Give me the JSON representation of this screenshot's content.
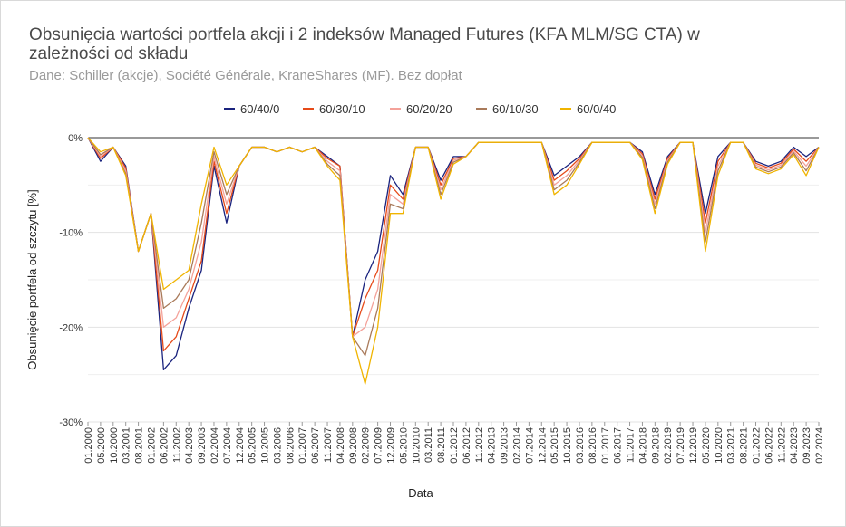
{
  "chart_data": {
    "type": "line",
    "title": "Obsunięcia wartości portfela akcji i 2 indeksów Managed Futures (KFA MLM/SG CTA) w zależności od składu",
    "subtitle": "Dane: Schiller (akcje), Société Générale, KraneShares (MF). Bez dopłat",
    "xlabel": "Data",
    "ylabel": "Obsunięcie portfela od szczytu [%]",
    "ylim": [
      -30,
      0
    ],
    "yticks": [
      0,
      -10,
      -20,
      -30
    ],
    "ytick_labels": [
      "0%",
      "-10%",
      "-20%",
      "-30%"
    ],
    "grid": true,
    "legend_position": "top-center",
    "categories": [
      "01.2000",
      "05.2000",
      "10.2000",
      "03.2001",
      "08.2001",
      "01.2002",
      "06.2002",
      "11.2002",
      "04.2003",
      "09.2003",
      "02.2004",
      "07.2004",
      "12.2004",
      "05.2005",
      "10.2005",
      "03.2006",
      "08.2006",
      "01.2007",
      "06.2007",
      "11.2007",
      "04.2008",
      "09.2008",
      "02.2009",
      "07.2009",
      "12.2009",
      "05.2010",
      "10.2010",
      "03.2011",
      "08.2011",
      "01.2012",
      "06.2012",
      "11.2012",
      "04.2013",
      "09.2013",
      "02.2014",
      "07.2014",
      "12.2014",
      "05.2015",
      "10.2015",
      "03.2016",
      "08.2016",
      "01.2017",
      "06.2017",
      "11.2017",
      "04.2018",
      "09.2018",
      "02.2019",
      "07.2019",
      "12.2019",
      "05.2020",
      "10.2020",
      "03.2021",
      "08.2021",
      "01.2022",
      "06.2022",
      "11.2022",
      "04.2023",
      "09.2023",
      "02.2024"
    ],
    "series": [
      {
        "name": "60/40/0",
        "color": "#1a237e",
        "values": [
          0,
          -2.5,
          -1,
          -3,
          -12,
          -8,
          -24.5,
          -23,
          -18,
          -14,
          -3,
          -9,
          -3,
          -1,
          -1,
          -1.5,
          -1,
          -1.5,
          -1,
          -2,
          -3,
          -21,
          -15,
          -12,
          -4,
          -6,
          -1,
          -1,
          -4.5,
          -2,
          -2,
          -0.5,
          -0.5,
          -0.5,
          -0.5,
          -0.5,
          -0.5,
          -4,
          -3,
          -2,
          -0.5,
          -0.5,
          -0.5,
          -0.5,
          -1.5,
          -6,
          -2,
          -0.5,
          -0.5,
          -8,
          -2,
          -0.5,
          -0.5,
          -2.5,
          -3,
          -2.5,
          -1,
          -2,
          -1
        ]
      },
      {
        "name": "60/30/10",
        "color": "#e64a19",
        "values": [
          0,
          -2.2,
          -1,
          -3.2,
          -12,
          -8,
          -22.5,
          -21,
          -17,
          -13,
          -2.5,
          -8,
          -3,
          -1,
          -1,
          -1.5,
          -1,
          -1.5,
          -1,
          -2.2,
          -3,
          -21,
          -17,
          -14,
          -5,
          -6.5,
          -1,
          -1,
          -5,
          -2.2,
          -2,
          -0.5,
          -0.5,
          -0.5,
          -0.5,
          -0.5,
          -0.5,
          -4.5,
          -3.5,
          -2.2,
          -0.5,
          -0.5,
          -0.5,
          -0.5,
          -1.7,
          -6.5,
          -2.2,
          -0.5,
          -0.5,
          -9,
          -2.5,
          -0.5,
          -0.5,
          -2.7,
          -3.2,
          -2.7,
          -1.2,
          -2.5,
          -1
        ]
      },
      {
        "name": "60/20/20",
        "color": "#f4a29a",
        "values": [
          0,
          -2,
          -1,
          -3.5,
          -12,
          -8,
          -20,
          -19,
          -16,
          -11,
          -2,
          -7,
          -3,
          -1,
          -1,
          -1.5,
          -1,
          -1.5,
          -1,
          -2.5,
          -3.5,
          -21,
          -20,
          -16,
          -6,
          -7,
          -1,
          -1,
          -5.5,
          -2.4,
          -2,
          -0.5,
          -0.5,
          -0.5,
          -0.5,
          -0.5,
          -0.5,
          -5,
          -4,
          -2.4,
          -0.5,
          -0.5,
          -0.5,
          -0.5,
          -1.9,
          -7,
          -2.4,
          -0.5,
          -0.5,
          -10,
          -3,
          -0.5,
          -0.5,
          -2.9,
          -3.4,
          -2.9,
          -1.4,
          -3,
          -1
        ]
      },
      {
        "name": "60/10/30",
        "color": "#a97a5a",
        "values": [
          0,
          -1.8,
          -1,
          -3.8,
          -12,
          -8,
          -18,
          -17,
          -15,
          -9,
          -1.5,
          -6,
          -3,
          -1,
          -1,
          -1.5,
          -1,
          -1.5,
          -1,
          -2.8,
          -4,
          -21,
          -23,
          -18,
          -7,
          -7.5,
          -1,
          -1,
          -6,
          -2.6,
          -2,
          -0.5,
          -0.5,
          -0.5,
          -0.5,
          -0.5,
          -0.5,
          -5.5,
          -4.5,
          -2.6,
          -0.5,
          -0.5,
          -0.5,
          -0.5,
          -2.1,
          -7.5,
          -2.6,
          -0.5,
          -0.5,
          -11,
          -3.5,
          -0.5,
          -0.5,
          -3.1,
          -3.6,
          -3.1,
          -1.6,
          -3.5,
          -1
        ]
      },
      {
        "name": "60/0/40",
        "color": "#f0b400",
        "values": [
          0,
          -1.5,
          -1,
          -4,
          -12,
          -8,
          -16,
          -15,
          -14,
          -7,
          -1,
          -5,
          -3,
          -1,
          -1,
          -1.5,
          -1,
          -1.5,
          -1,
          -3,
          -4.5,
          -21,
          -26,
          -20,
          -8,
          -8,
          -1,
          -1,
          -6.5,
          -2.8,
          -2,
          -0.5,
          -0.5,
          -0.5,
          -0.5,
          -0.5,
          -0.5,
          -6,
          -5,
          -2.8,
          -0.5,
          -0.5,
          -0.5,
          -0.5,
          -2.3,
          -8,
          -2.8,
          -0.5,
          -0.5,
          -12,
          -4,
          -0.5,
          -0.5,
          -3.3,
          -3.8,
          -3.3,
          -1.8,
          -4,
          -1
        ]
      }
    ]
  }
}
